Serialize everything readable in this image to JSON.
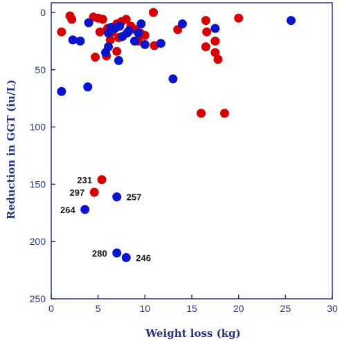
{
  "chart_data": {
    "type": "scatter",
    "xlabel": "Weight loss (kg)",
    "ylabel": "Reduction in GGT (iu/L)",
    "xlim": [
      0,
      30
    ],
    "ylim": [
      0,
      250
    ],
    "y_inverted": true,
    "x_ticks": [
      0,
      5,
      10,
      15,
      20,
      25,
      30
    ],
    "y_ticks": [
      0,
      50,
      100,
      150,
      200,
      250
    ],
    "grid": false,
    "legend": "none",
    "colors": {
      "axis": "#26357a",
      "red": "#d40000",
      "blue": "#0a14c8",
      "text": "#1a1a1a"
    },
    "series": [
      {
        "color": "red",
        "points": [
          [
            1.1,
            17
          ],
          [
            2.0,
            3
          ],
          [
            2.2,
            6
          ],
          [
            4.5,
            4
          ],
          [
            5.0,
            5
          ],
          [
            5.5,
            6
          ],
          [
            5.2,
            17
          ],
          [
            6.0,
            14
          ],
          [
            6.5,
            17
          ],
          [
            7.0,
            10
          ],
          [
            7.5,
            8
          ],
          [
            8.0,
            6
          ],
          [
            8.5,
            12
          ],
          [
            9.0,
            15
          ],
          [
            9.5,
            18
          ],
          [
            10.0,
            20
          ],
          [
            7.2,
            22
          ],
          [
            6.3,
            24
          ],
          [
            9.3,
            25
          ],
          [
            7.0,
            34
          ],
          [
            4.7,
            39
          ],
          [
            5.9,
            38
          ],
          [
            10.9,
            0
          ],
          [
            11.0,
            29
          ],
          [
            13.5,
            15
          ],
          [
            16.5,
            7
          ],
          [
            16.6,
            17
          ],
          [
            16.5,
            30
          ],
          [
            17.5,
            25
          ],
          [
            17.5,
            35
          ],
          [
            17.8,
            41
          ],
          [
            20.0,
            5
          ],
          [
            16.0,
            88
          ],
          [
            18.5,
            88
          ],
          [
            5.4,
            146
          ],
          [
            4.6,
            157
          ]
        ]
      },
      {
        "color": "blue",
        "points": [
          [
            1.1,
            69
          ],
          [
            2.3,
            24
          ],
          [
            3.1,
            25
          ],
          [
            4.0,
            9
          ],
          [
            3.9,
            65
          ],
          [
            5.8,
            35
          ],
          [
            6.1,
            30
          ],
          [
            6.1,
            18
          ],
          [
            6.4,
            13
          ],
          [
            6.8,
            14
          ],
          [
            7.3,
            12
          ],
          [
            7.6,
            21
          ],
          [
            8.1,
            18
          ],
          [
            8.3,
            16
          ],
          [
            8.9,
            25
          ],
          [
            9.3,
            18
          ],
          [
            9.6,
            10
          ],
          [
            10.0,
            28
          ],
          [
            7.2,
            42
          ],
          [
            11.7,
            27
          ],
          [
            13.0,
            58
          ],
          [
            14.0,
            10
          ],
          [
            17.5,
            14
          ],
          [
            25.6,
            7
          ],
          [
            7.0,
            161
          ],
          [
            3.6,
            172
          ],
          [
            7.0,
            210
          ],
          [
            8.0,
            214
          ]
        ]
      }
    ],
    "annotations": [
      {
        "text": "231",
        "x": 5.4,
        "y": 146,
        "side": "left"
      },
      {
        "text": "297",
        "x": 4.6,
        "y": 157,
        "side": "left"
      },
      {
        "text": "257",
        "x": 7.0,
        "y": 161,
        "side": "right"
      },
      {
        "text": "264",
        "x": 3.6,
        "y": 172,
        "side": "left"
      },
      {
        "text": "280",
        "x": 7.0,
        "y": 210,
        "side": "left"
      },
      {
        "text": "246",
        "x": 8.0,
        "y": 214,
        "side": "right"
      }
    ]
  }
}
